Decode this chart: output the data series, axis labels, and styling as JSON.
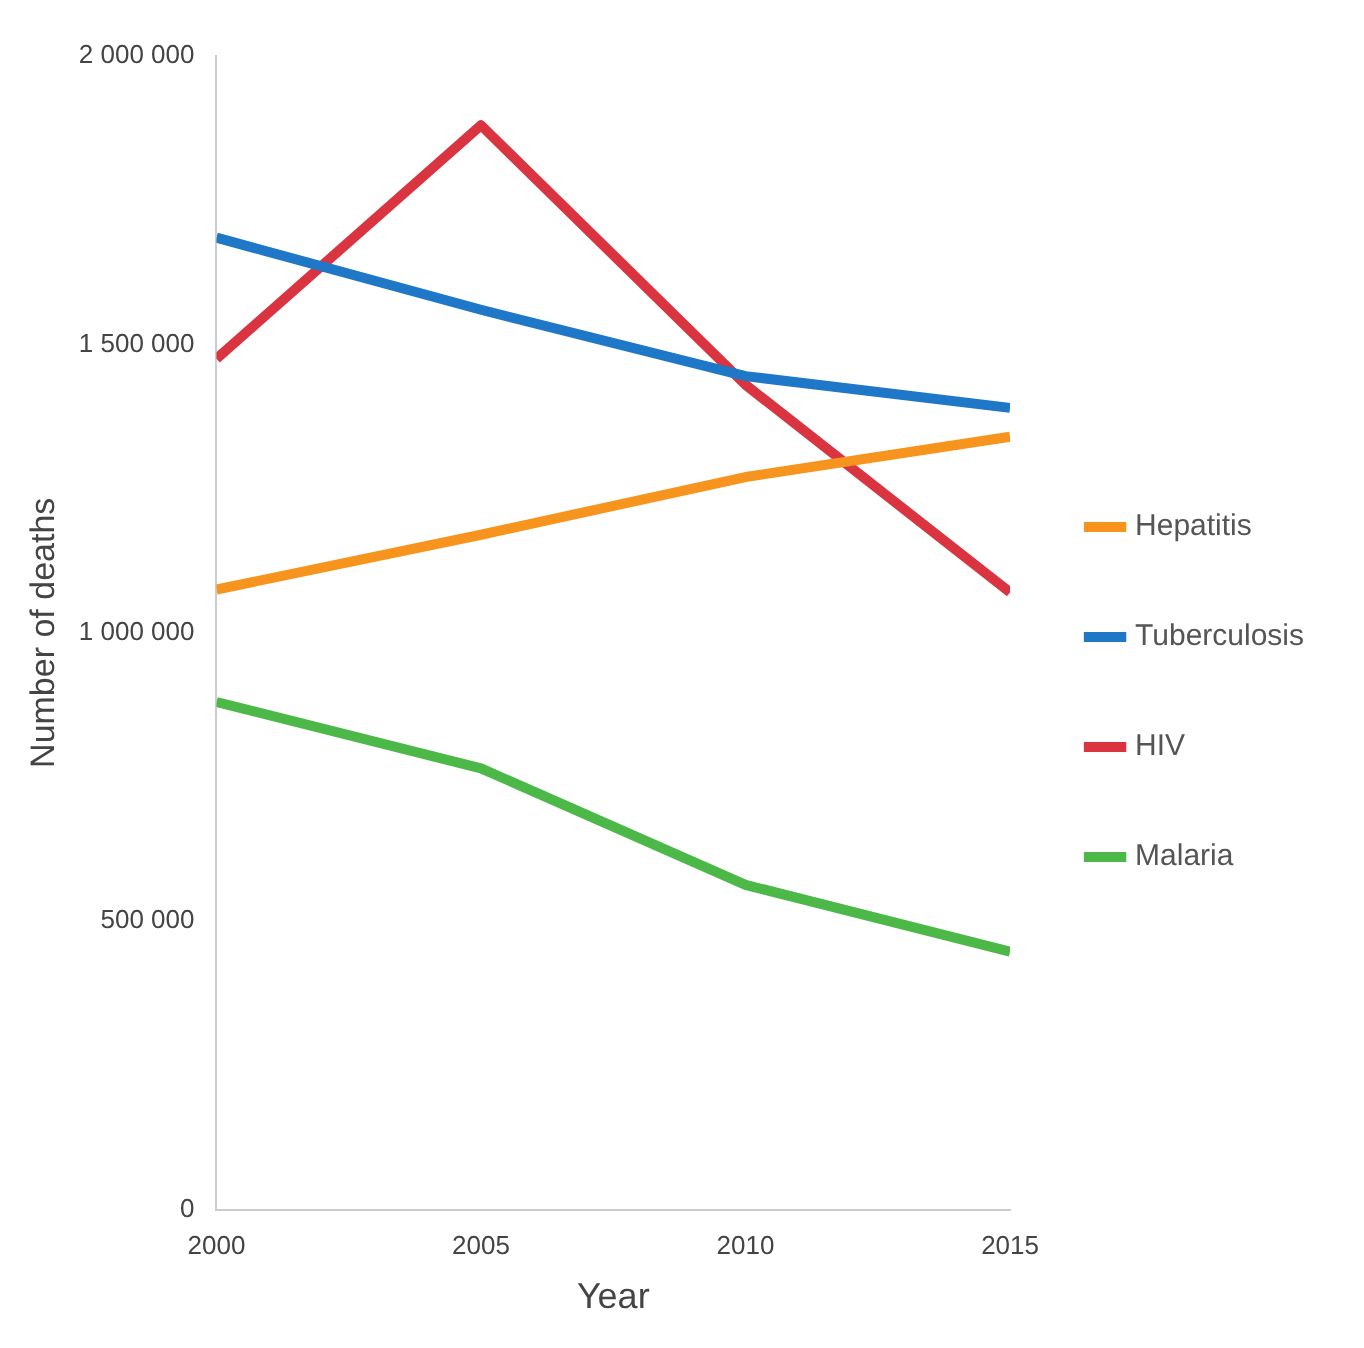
{
  "chart_data": {
    "type": "line",
    "xlabel": "Year",
    "ylabel": "Number of deaths",
    "x": [
      2000,
      2005,
      2010,
      2015
    ],
    "series": [
      {
        "name": "Hepatitis",
        "color": "#f7941d",
        "values": [
          1075000,
          1170000,
          1270000,
          1340000
        ]
      },
      {
        "name": "Tuberculosis",
        "color": "#1f77c8",
        "values": [
          1685000,
          1560000,
          1445000,
          1390000
        ]
      },
      {
        "name": "HIV",
        "color": "#d9343f",
        "values": [
          1475000,
          1880000,
          1430000,
          1070000
        ]
      },
      {
        "name": "Malaria",
        "color": "#4cb848",
        "values": [
          880000,
          765000,
          563000,
          447000
        ]
      }
    ],
    "xlim": [
      2000,
      2015
    ],
    "xticks": [
      2000,
      2005,
      2010,
      2015
    ],
    "ylim": [
      0,
      2000000
    ],
    "yticks": [
      0,
      {
        "value": 500000,
        "label": "500 000"
      },
      {
        "value": 1000000,
        "label": "1 000 000"
      },
      {
        "value": 1500000,
        "label": "1 500 000"
      },
      {
        "value": 2000000,
        "label": "2 000 000"
      }
    ],
    "grid": false,
    "legend": "right",
    "marker": "none",
    "line_style": "solid"
  }
}
